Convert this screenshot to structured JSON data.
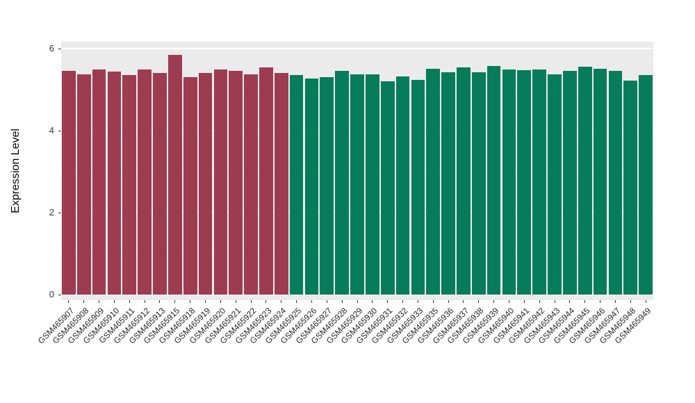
{
  "chart_data": {
    "type": "bar",
    "title": "",
    "xlabel": "",
    "ylabel": "Expression Level",
    "ylim": [
      0,
      6
    ],
    "yticks": [
      0,
      2,
      4,
      6
    ],
    "yticks_minor": [
      1,
      3,
      5
    ],
    "grid": true,
    "legend_position": "none",
    "panel_background": "#EBEBEB",
    "grid_color": "#FFFFFF",
    "categories": [
      "GSM465907",
      "GSM465908",
      "GSM465909",
      "GSM465910",
      "GSM465911",
      "GSM465912",
      "GSM465913",
      "GSM465915",
      "GSM465918",
      "GSM465919",
      "GSM465920",
      "GSM465921",
      "GSM465922",
      "GSM465923",
      "GSM465924",
      "GSM465925",
      "GSM465926",
      "GSM465927",
      "GSM465928",
      "GSM465929",
      "GSM465930",
      "GSM465931",
      "GSM465932",
      "GSM465933",
      "GSM465935",
      "GSM465936",
      "GSM465937",
      "GSM465938",
      "GSM465939",
      "GSM465940",
      "GSM465941",
      "GSM465942",
      "GSM465943",
      "GSM465944",
      "GSM465945",
      "GSM465946",
      "GSM465947",
      "GSM465948",
      "GSM465949"
    ],
    "values": [
      5.46,
      5.38,
      5.5,
      5.44,
      5.35,
      5.5,
      5.41,
      5.85,
      5.3,
      5.4,
      5.5,
      5.45,
      5.37,
      5.54,
      5.4,
      5.36,
      5.27,
      5.31,
      5.46,
      5.38,
      5.37,
      5.21,
      5.33,
      5.23,
      5.51,
      5.42,
      5.55,
      5.42,
      5.57,
      5.49,
      5.47,
      5.5,
      5.38,
      5.45,
      5.56,
      5.51,
      5.46,
      5.22,
      5.36
    ],
    "groups": [
      "group1",
      "group1",
      "group1",
      "group1",
      "group1",
      "group1",
      "group1",
      "group1",
      "group1",
      "group1",
      "group1",
      "group1",
      "group1",
      "group1",
      "group1",
      "group2",
      "group2",
      "group2",
      "group2",
      "group2",
      "group2",
      "group2",
      "group2",
      "group2",
      "group2",
      "group2",
      "group2",
      "group2",
      "group2",
      "group2",
      "group2",
      "group2",
      "group2",
      "group2",
      "group2",
      "group2",
      "group2",
      "group2",
      "group2"
    ],
    "group_colors": {
      "group1": "#9D3C51",
      "group2": "#077C5B"
    }
  }
}
